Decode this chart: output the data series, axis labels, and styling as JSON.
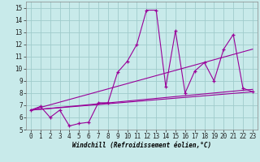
{
  "xlabel": "Windchill (Refroidissement éolien,°C)",
  "background_color": "#c8eaea",
  "grid_color": "#a0cccc",
  "line_color": "#990099",
  "spine_color": "#888888",
  "xlim": [
    -0.5,
    23.5
  ],
  "ylim": [
    5,
    15.5
  ],
  "yticks": [
    5,
    6,
    7,
    8,
    9,
    10,
    11,
    12,
    13,
    14,
    15
  ],
  "xticks": [
    0,
    1,
    2,
    3,
    4,
    5,
    6,
    7,
    8,
    9,
    10,
    11,
    12,
    13,
    14,
    15,
    16,
    17,
    18,
    19,
    20,
    21,
    22,
    23
  ],
  "series1_x": [
    0,
    1,
    2,
    3,
    4,
    5,
    6,
    7,
    8,
    9,
    10,
    11,
    12,
    13,
    14,
    15,
    16,
    17,
    18,
    19,
    20,
    21,
    22,
    23
  ],
  "series1_y": [
    6.6,
    6.9,
    6.0,
    6.6,
    5.3,
    5.5,
    5.6,
    7.2,
    7.2,
    9.7,
    10.6,
    12.0,
    14.8,
    14.8,
    8.5,
    13.1,
    8.0,
    9.8,
    10.5,
    9.0,
    11.6,
    12.8,
    8.4,
    8.1
  ],
  "series2_x": [
    0,
    23
  ],
  "series2_y": [
    6.6,
    8.1
  ],
  "series3_x": [
    0,
    23
  ],
  "series3_y": [
    6.6,
    11.6
  ],
  "series4_x": [
    0,
    23
  ],
  "series4_y": [
    6.6,
    8.3
  ],
  "tick_fontsize": 5.5,
  "xlabel_fontsize": 5.5
}
